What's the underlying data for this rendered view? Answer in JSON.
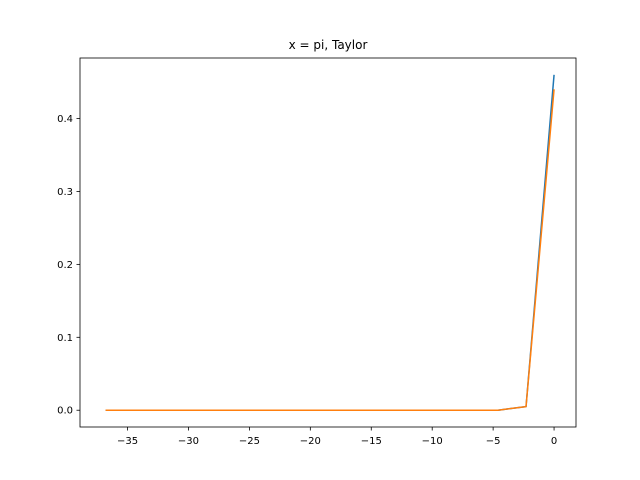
{
  "chart_data": {
    "type": "line",
    "title": "x = pi, Taylor",
    "xlabel": "",
    "ylabel": "",
    "xlim": [
      -38.9,
      1.8
    ],
    "ylim": [
      -0.023,
      0.483
    ],
    "xticks": [
      -35,
      -30,
      -25,
      -20,
      -15,
      -10,
      -5,
      0
    ],
    "yticks": [
      0.0,
      0.1,
      0.2,
      0.3,
      0.4
    ],
    "xtick_labels": [
      "−35",
      "−30",
      "−25",
      "−20",
      "−15",
      "−10",
      "−5",
      "0"
    ],
    "ytick_labels": [
      "0.0",
      "0.1",
      "0.2",
      "0.3",
      "0.4"
    ],
    "grid": false,
    "series": [
      {
        "color": "#1f77b4",
        "x": [
          -36.8,
          -34.5,
          -32.2,
          -29.9,
          -27.6,
          -25.3,
          -23.0,
          -20.7,
          -18.4,
          -16.1,
          -13.8,
          -11.5,
          -9.2,
          -6.9,
          -4.6,
          -2.3,
          0.0
        ],
        "y": [
          0.0,
          0.0,
          0.0,
          0.0,
          0.0,
          0.0,
          0.0,
          0.0,
          0.0,
          0.0,
          0.0,
          0.0,
          0.0,
          0.0,
          0.0,
          0.005,
          0.46
        ]
      },
      {
        "color": "#ff7f0e",
        "x": [
          -36.8,
          -34.5,
          -32.2,
          -29.9,
          -27.6,
          -25.3,
          -23.0,
          -20.7,
          -18.4,
          -16.1,
          -13.8,
          -11.5,
          -9.2,
          -6.9,
          -4.6,
          -2.3,
          0.0
        ],
        "y": [
          0.0,
          0.0,
          0.0,
          0.0,
          0.0,
          0.0,
          0.0,
          0.0,
          0.0,
          0.0,
          0.0,
          0.0,
          0.0,
          0.0,
          0.0,
          0.005,
          0.44
        ]
      }
    ]
  }
}
